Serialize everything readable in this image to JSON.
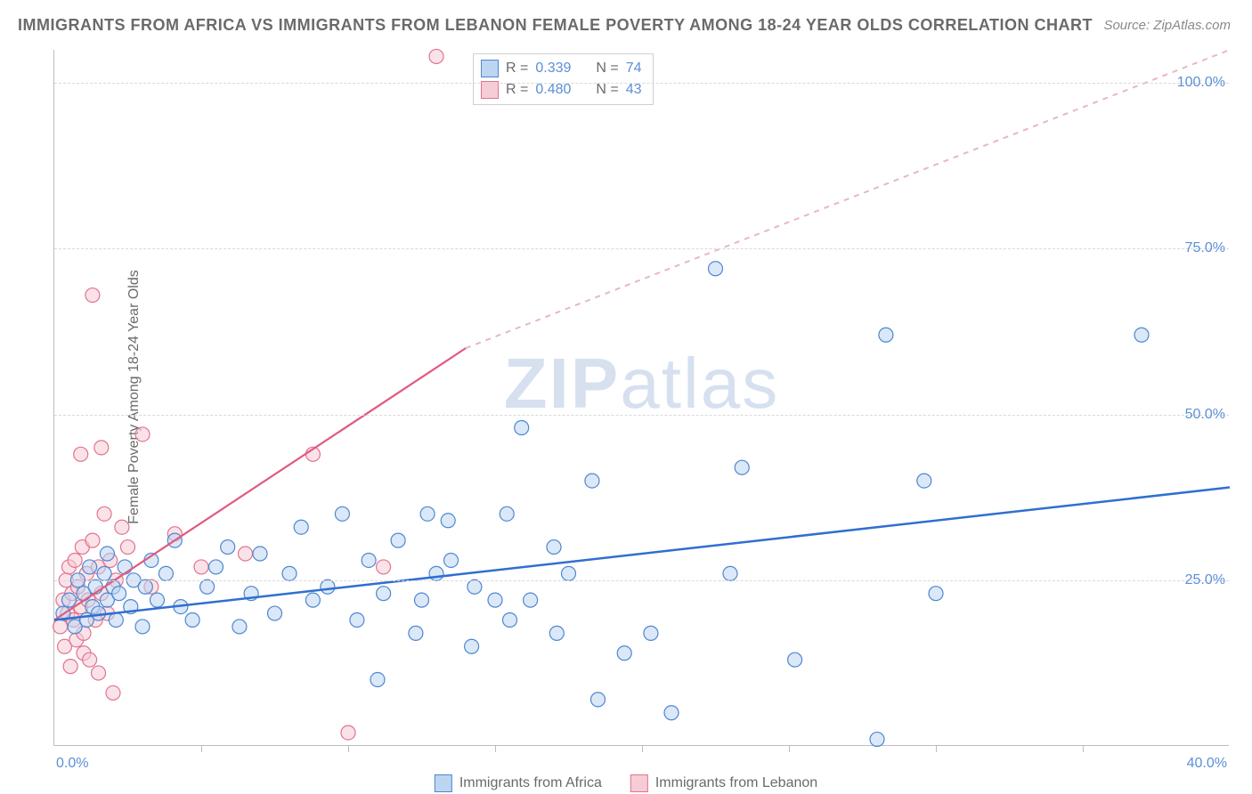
{
  "title": "IMMIGRANTS FROM AFRICA VS IMMIGRANTS FROM LEBANON FEMALE POVERTY AMONG 18-24 YEAR OLDS CORRELATION CHART",
  "source": "Source: ZipAtlas.com",
  "ylabel": "Female Poverty Among 18-24 Year Olds",
  "watermark_a": "ZIP",
  "watermark_b": "atlas",
  "colors": {
    "title": "#6a6a6a",
    "axis_label": "#5b8fd6",
    "grid": "#d9d9d9",
    "axis_line": "#bdbdbd",
    "series_blue_fill": "#bcd5f0",
    "series_blue_stroke": "#4f86d1",
    "series_pink_fill": "#f6ccd6",
    "series_pink_stroke": "#e3728f",
    "trend_blue": "#2f6fd0",
    "trend_pink": "#e15a7e",
    "watermark": "#c9d6ea"
  },
  "chart": {
    "type": "scatter",
    "xlim": [
      0,
      40
    ],
    "ylim": [
      0,
      105
    ],
    "y_ticks": [
      25,
      50,
      75,
      100
    ],
    "y_tick_labels": [
      "25.0%",
      "50.0%",
      "75.0%",
      "100.0%"
    ],
    "x_minor_ticks": [
      5,
      10,
      15,
      20,
      25,
      30,
      35
    ],
    "x0_label": "0.0%",
    "x1_label": "40.0%",
    "marker_radius": 8,
    "marker_opacity": 0.55
  },
  "legend_stats": [
    {
      "swatch_fill": "#bcd5f0",
      "swatch_stroke": "#4f86d1",
      "r_label": "R  =",
      "r": "0.339",
      "n_label": "N  =",
      "n": "74"
    },
    {
      "swatch_fill": "#f6ccd6",
      "swatch_stroke": "#e3728f",
      "r_label": "R  =",
      "r": "0.480",
      "n_label": "N  =",
      "n": "43"
    }
  ],
  "bottom_legend": [
    {
      "swatch_fill": "#bcd5f0",
      "swatch_stroke": "#4f86d1",
      "label": "Immigrants from Africa"
    },
    {
      "swatch_fill": "#f6ccd6",
      "swatch_stroke": "#e3728f",
      "label": "Immigrants from Lebanon"
    }
  ],
  "trend_lines": {
    "blue": {
      "x1": 0,
      "y1": 19,
      "x2": 40,
      "y2": 39,
      "color": "#2f6fd0",
      "width": 2.5,
      "dash": ""
    },
    "pink_solid": {
      "x1": 0,
      "y1": 19,
      "x2": 14,
      "y2": 60,
      "color": "#e15a7e",
      "width": 2.2,
      "dash": ""
    },
    "pink_dashed": {
      "x1": 14,
      "y1": 60,
      "x2": 40,
      "y2": 105,
      "color": "#e8b7c3",
      "width": 2,
      "dash": "6 6"
    }
  },
  "series": {
    "africa": [
      [
        0.3,
        20
      ],
      [
        0.5,
        22
      ],
      [
        0.7,
        18
      ],
      [
        0.8,
        25
      ],
      [
        1.0,
        23
      ],
      [
        1.1,
        19
      ],
      [
        1.2,
        27
      ],
      [
        1.3,
        21
      ],
      [
        1.4,
        24
      ],
      [
        1.5,
        20
      ],
      [
        1.7,
        26
      ],
      [
        1.8,
        22
      ],
      [
        1.8,
        29
      ],
      [
        2.0,
        24
      ],
      [
        2.1,
        19
      ],
      [
        2.2,
        23
      ],
      [
        2.4,
        27
      ],
      [
        2.6,
        21
      ],
      [
        2.7,
        25
      ],
      [
        3.0,
        18
      ],
      [
        3.1,
        24
      ],
      [
        3.3,
        28
      ],
      [
        3.5,
        22
      ],
      [
        3.8,
        26
      ],
      [
        4.1,
        31
      ],
      [
        4.3,
        21
      ],
      [
        4.7,
        19
      ],
      [
        5.2,
        24
      ],
      [
        5.5,
        27
      ],
      [
        5.9,
        30
      ],
      [
        6.3,
        18
      ],
      [
        6.7,
        23
      ],
      [
        7.0,
        29
      ],
      [
        7.5,
        20
      ],
      [
        8.0,
        26
      ],
      [
        8.4,
        33
      ],
      [
        8.8,
        22
      ],
      [
        9.3,
        24
      ],
      [
        9.8,
        35
      ],
      [
        10.3,
        19
      ],
      [
        10.7,
        28
      ],
      [
        11.0,
        10
      ],
      [
        11.2,
        23
      ],
      [
        11.7,
        31
      ],
      [
        12.3,
        17
      ],
      [
        12.5,
        22
      ],
      [
        12.7,
        35
      ],
      [
        13.0,
        26
      ],
      [
        13.4,
        34
      ],
      [
        13.5,
        28
      ],
      [
        14.2,
        15
      ],
      [
        14.3,
        24
      ],
      [
        15.0,
        22
      ],
      [
        15.4,
        35
      ],
      [
        15.5,
        19
      ],
      [
        15.9,
        48
      ],
      [
        16.2,
        22
      ],
      [
        17.0,
        30
      ],
      [
        17.1,
        17
      ],
      [
        17.5,
        26
      ],
      [
        18.3,
        40
      ],
      [
        18.5,
        7
      ],
      [
        19.4,
        14
      ],
      [
        20.3,
        17
      ],
      [
        21.0,
        5
      ],
      [
        22.5,
        72
      ],
      [
        23.0,
        26
      ],
      [
        23.4,
        42
      ],
      [
        25.2,
        13
      ],
      [
        28.0,
        1
      ],
      [
        28.3,
        62
      ],
      [
        29.6,
        40
      ],
      [
        37.0,
        62
      ],
      [
        30.0,
        23
      ]
    ],
    "lebanon": [
      [
        0.2,
        18
      ],
      [
        0.3,
        22
      ],
      [
        0.35,
        15
      ],
      [
        0.4,
        25
      ],
      [
        0.45,
        20
      ],
      [
        0.5,
        27
      ],
      [
        0.55,
        12
      ],
      [
        0.6,
        23
      ],
      [
        0.65,
        19
      ],
      [
        0.7,
        28
      ],
      [
        0.75,
        16
      ],
      [
        0.8,
        24
      ],
      [
        0.9,
        21
      ],
      [
        0.95,
        30
      ],
      [
        1.0,
        17
      ],
      [
        1.0,
        14
      ],
      [
        1.1,
        26
      ],
      [
        1.15,
        22
      ],
      [
        1.2,
        13
      ],
      [
        1.3,
        31
      ],
      [
        1.4,
        19
      ],
      [
        1.5,
        27
      ],
      [
        1.5,
        11
      ],
      [
        1.6,
        23
      ],
      [
        1.7,
        35
      ],
      [
        1.8,
        20
      ],
      [
        1.9,
        28
      ],
      [
        2.0,
        8
      ],
      [
        2.1,
        25
      ],
      [
        2.3,
        33
      ],
      [
        0.9,
        44
      ],
      [
        1.3,
        68
      ],
      [
        1.6,
        45
      ],
      [
        2.5,
        30
      ],
      [
        3.0,
        47
      ],
      [
        3.3,
        24
      ],
      [
        4.1,
        32
      ],
      [
        5.0,
        27
      ],
      [
        6.5,
        29
      ],
      [
        8.8,
        44
      ],
      [
        10.0,
        2
      ],
      [
        11.2,
        27
      ],
      [
        13.0,
        104
      ]
    ]
  }
}
